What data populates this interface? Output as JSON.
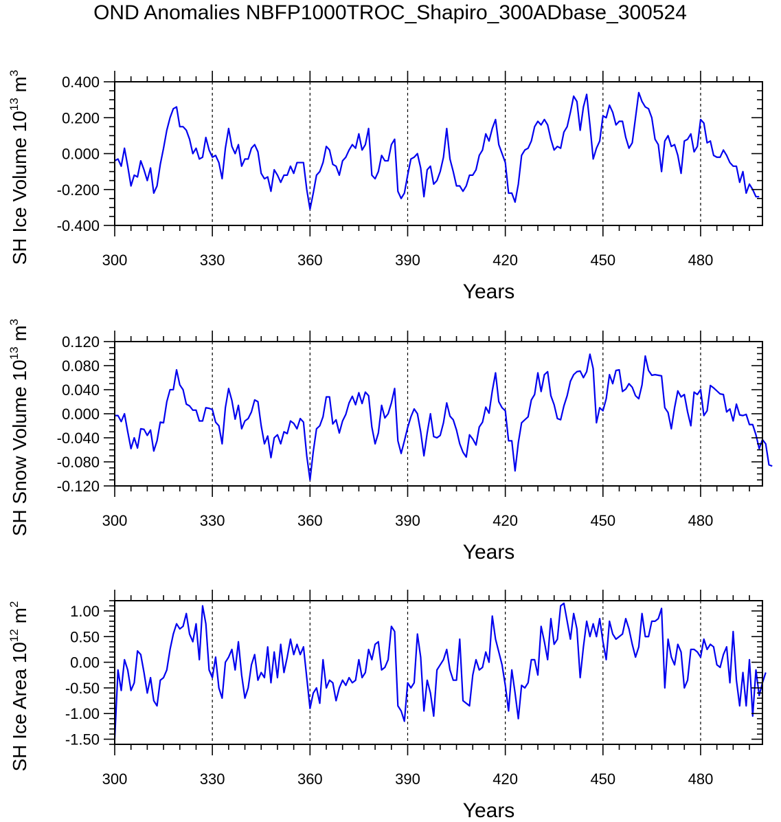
{
  "title": "OND Anomalies NBFP1000TROC_Shapiro_300ADbase_300524",
  "chart_data": [
    {
      "type": "line",
      "xlabel": "Years",
      "ylabel": {
        "text": "SH Ice Volume 10",
        "sup": "13",
        "unit": " m",
        "unit_sup": "3"
      },
      "xlim": [
        300,
        499
      ],
      "ylim": [
        -0.4,
        0.4
      ],
      "xticks": [
        "300",
        "330",
        "360",
        "390",
        "420",
        "450",
        "480"
      ],
      "xtick_values": [
        300,
        330,
        360,
        390,
        420,
        450,
        480
      ],
      "yticks": [
        "-0.400",
        "-0.200",
        "0.000",
        "0.200",
        "0.400"
      ],
      "ytick_values": [
        -0.4,
        -0.2,
        0.0,
        0.2,
        0.4
      ],
      "minor_ystep": 0.05,
      "vlines": [
        330,
        360,
        390,
        420,
        450,
        480
      ],
      "color": "#0000ee",
      "series": [
        {
          "x_start": 300,
          "values": [
            -0.04,
            -0.03,
            -0.07,
            0.03,
            -0.07,
            -0.18,
            -0.12,
            -0.13,
            -0.04,
            -0.09,
            -0.15,
            -0.08,
            -0.22,
            -0.18,
            -0.06,
            0.03,
            0.13,
            0.2,
            0.25,
            0.26,
            0.15,
            0.15,
            0.13,
            0.08,
            0.0,
            0.03,
            -0.03,
            -0.02,
            0.09,
            0.02,
            -0.02,
            -0.01,
            -0.05,
            -0.14,
            0.03,
            0.14,
            0.04,
            0.0,
            0.05,
            -0.07,
            -0.03,
            -0.03,
            0.03,
            0.05,
            0.01,
            -0.11,
            -0.14,
            -0.13,
            -0.21,
            -0.09,
            -0.12,
            -0.16,
            -0.12,
            -0.12,
            -0.07,
            -0.11,
            -0.05,
            -0.05,
            -0.05,
            -0.2,
            -0.31,
            -0.22,
            -0.12,
            -0.1,
            -0.05,
            0.04,
            0.02,
            -0.06,
            -0.07,
            -0.12,
            -0.04,
            -0.02,
            0.02,
            0.05,
            0.03,
            0.11,
            0.02,
            0.05,
            0.14,
            -0.12,
            -0.14,
            -0.1,
            -0.01,
            -0.04,
            -0.04,
            0.05,
            0.08,
            -0.21,
            -0.25,
            -0.22,
            -0.12,
            -0.03,
            -0.02,
            0.0,
            -0.08,
            -0.24,
            -0.09,
            -0.07,
            -0.17,
            -0.15,
            -0.1,
            -0.02,
            0.14,
            -0.03,
            -0.1,
            -0.18,
            -0.18,
            -0.21,
            -0.18,
            -0.12,
            -0.12,
            -0.09,
            -0.01,
            0.02,
            0.11,
            0.07,
            0.14,
            0.19,
            0.05,
            0.0,
            -0.05,
            -0.22,
            -0.22,
            -0.27,
            -0.17,
            -0.01,
            0.02,
            0.03,
            0.07,
            0.15,
            0.18,
            0.16,
            0.19,
            0.16,
            0.08,
            0.02,
            0.04,
            0.03,
            0.12,
            0.15,
            0.23,
            0.32,
            0.29,
            0.13,
            0.26,
            0.33,
            0.16,
            -0.03,
            0.03,
            0.07,
            0.21,
            0.2,
            0.27,
            0.23,
            0.16,
            0.18,
            0.18,
            0.09,
            0.03,
            0.06,
            0.2,
            0.34,
            0.29,
            0.26,
            0.25,
            0.2,
            0.08,
            0.05,
            -0.1,
            0.07,
            0.1,
            0.04,
            0.05,
            -0.01,
            -0.11,
            0.07,
            0.08,
            0.11,
            0.01,
            0.04,
            0.19,
            0.17,
            0.06,
            0.07,
            -0.01,
            -0.02,
            -0.02,
            0.02,
            -0.01,
            -0.05,
            -0.07,
            -0.07,
            -0.16,
            -0.1,
            -0.22,
            -0.17,
            -0.2,
            -0.24,
            -0.24
          ]
        }
      ]
    },
    {
      "type": "line",
      "xlabel": "Years",
      "ylabel": {
        "text": "SH Snow Volume 10",
        "sup": "13",
        "unit": " m",
        "unit_sup": "3"
      },
      "xlim": [
        300,
        499
      ],
      "ylim": [
        -0.12,
        0.12
      ],
      "xticks": [
        "300",
        "330",
        "360",
        "390",
        "420",
        "450",
        "480"
      ],
      "xtick_values": [
        300,
        330,
        360,
        390,
        420,
        450,
        480
      ],
      "yticks": [
        "-0.120",
        "-0.080",
        "-0.040",
        "0.000",
        "0.040",
        "0.080",
        "0.120"
      ],
      "ytick_values": [
        -0.12,
        -0.08,
        -0.04,
        0.0,
        0.04,
        0.08,
        0.12
      ],
      "minor_ystep": 0.01,
      "vlines": [
        330,
        360,
        390,
        420,
        450,
        480
      ],
      "color": "#0000ee",
      "series": [
        {
          "x_start": 300,
          "values": [
            -0.003,
            -0.003,
            -0.013,
            0.0,
            -0.03,
            -0.058,
            -0.04,
            -0.057,
            -0.025,
            -0.026,
            -0.036,
            -0.027,
            -0.062,
            -0.045,
            -0.014,
            -0.015,
            0.02,
            0.04,
            0.04,
            0.073,
            0.048,
            0.04,
            0.016,
            0.013,
            0.006,
            0.006,
            -0.012,
            -0.012,
            0.01,
            0.009,
            0.007,
            -0.014,
            -0.02,
            -0.05,
            0.01,
            0.042,
            0.022,
            -0.009,
            0.014,
            -0.025,
            -0.012,
            -0.008,
            0.003,
            0.023,
            0.02,
            -0.02,
            -0.05,
            -0.037,
            -0.073,
            -0.04,
            -0.035,
            -0.05,
            -0.03,
            -0.033,
            -0.012,
            -0.016,
            -0.025,
            -0.008,
            -0.014,
            -0.07,
            -0.11,
            -0.063,
            -0.025,
            -0.02,
            -0.005,
            0.028,
            0.028,
            -0.017,
            -0.01,
            -0.032,
            -0.012,
            -0.001,
            0.018,
            0.029,
            0.015,
            0.035,
            0.017,
            0.036,
            0.03,
            -0.022,
            -0.05,
            -0.032,
            0.014,
            -0.007,
            0.0,
            0.018,
            0.042,
            -0.045,
            -0.066,
            -0.045,
            -0.023,
            -0.005,
            0.008,
            0.0,
            -0.03,
            -0.07,
            -0.032,
            0.0,
            -0.038,
            -0.04,
            -0.036,
            -0.015,
            0.018,
            -0.004,
            -0.01,
            -0.027,
            -0.05,
            -0.064,
            -0.072,
            -0.035,
            -0.042,
            -0.052,
            -0.022,
            -0.014,
            0.011,
            0.001,
            0.038,
            0.068,
            0.02,
            0.01,
            0.005,
            -0.045,
            -0.045,
            -0.095,
            -0.048,
            -0.015,
            -0.01,
            -0.005,
            0.023,
            0.032,
            0.068,
            0.037,
            0.065,
            0.07,
            0.03,
            0.015,
            -0.008,
            -0.01,
            0.013,
            0.03,
            0.054,
            0.065,
            0.07,
            0.071,
            0.06,
            0.07,
            0.099,
            0.075,
            -0.015,
            0.01,
            0.005,
            0.025,
            0.065,
            0.05,
            0.072,
            0.073,
            0.037,
            0.041,
            0.05,
            0.044,
            0.03,
            0.025,
            0.048,
            0.096,
            0.072,
            0.064,
            0.065,
            0.064,
            0.063,
            0.01,
            0.002,
            -0.025,
            0.01,
            0.038,
            0.028,
            0.032,
            0.003,
            -0.02,
            0.036,
            0.032,
            0.04,
            -0.003,
            0.005,
            0.047,
            0.043,
            0.038,
            0.033,
            0.032,
            0.003,
            0.008,
            -0.012,
            0.016,
            -0.002,
            -0.003,
            -0.001,
            -0.018,
            -0.018,
            -0.035,
            -0.058,
            -0.043,
            -0.05,
            -0.085,
            -0.087
          ]
        }
      ]
    },
    {
      "type": "line",
      "xlabel": "Years",
      "ylabel": {
        "text": "SH Ice Area 10",
        "sup": "12",
        "unit": " m",
        "unit_sup": "2"
      },
      "xlim": [
        300,
        499
      ],
      "ylim": [
        -1.6,
        1.2
      ],
      "xticks": [
        "300",
        "330",
        "360",
        "390",
        "420",
        "450",
        "480"
      ],
      "xtick_values": [
        300,
        330,
        360,
        390,
        420,
        450,
        480
      ],
      "yticks": [
        "-1.50",
        "-1.00",
        "-0.50",
        "0.00",
        "0.50",
        "1.00"
      ],
      "ytick_values": [
        -1.5,
        -1.0,
        -0.5,
        0.0,
        0.5,
        1.0
      ],
      "minor_ystep": 0.1,
      "vlines": [
        330,
        360,
        390,
        420,
        450,
        480
      ],
      "color": "#0000ee",
      "series": [
        {
          "x_start": 300,
          "values": [
            -1.5,
            -0.15,
            -0.55,
            0.05,
            -0.15,
            -0.55,
            -0.4,
            0.22,
            0.15,
            -0.2,
            -0.6,
            -0.3,
            -0.75,
            -0.85,
            -0.35,
            -0.3,
            -0.15,
            0.25,
            0.55,
            0.75,
            0.65,
            0.7,
            0.95,
            0.55,
            0.4,
            0.75,
            0.05,
            1.1,
            0.75,
            -0.15,
            -0.3,
            0.1,
            -0.5,
            -0.7,
            0.0,
            0.1,
            0.25,
            -0.15,
            0.4,
            -0.25,
            -0.7,
            -0.5,
            -0.05,
            0.15,
            -0.35,
            -0.2,
            -0.3,
            0.3,
            -0.4,
            0.2,
            -0.3,
            0.35,
            -0.2,
            0.1,
            0.45,
            0.15,
            0.35,
            0.15,
            0.3,
            -0.3,
            -0.9,
            -0.6,
            -0.5,
            -0.8,
            0.05,
            -0.5,
            -0.35,
            -0.4,
            -0.75,
            -0.5,
            -0.35,
            -0.45,
            -0.3,
            -0.4,
            -0.35,
            0.05,
            -0.3,
            -0.2,
            0.25,
            0.05,
            0.35,
            0.4,
            -0.15,
            -0.1,
            0.05,
            0.7,
            0.6,
            -0.85,
            -0.95,
            -1.15,
            -0.4,
            -0.5,
            -0.4,
            0.55,
            0.1,
            -0.95,
            -0.35,
            -0.6,
            -1.05,
            -0.15,
            -0.05,
            0.05,
            0.25,
            -0.15,
            -0.35,
            -0.35,
            0.45,
            -0.75,
            -0.8,
            -0.85,
            -0.25,
            0.05,
            -0.15,
            -0.1,
            0.2,
            0.0,
            0.9,
            0.45,
            0.2,
            -0.05,
            -0.45,
            -0.95,
            -0.15,
            -0.6,
            -1.1,
            -0.45,
            -0.5,
            -0.4,
            0.05,
            0.05,
            -0.25,
            0.7,
            0.4,
            0.05,
            0.85,
            0.35,
            0.45,
            1.1,
            1.15,
            0.8,
            0.45,
            0.95,
            0.65,
            -0.3,
            0.3,
            0.8,
            0.5,
            0.75,
            0.5,
            0.85,
            0.4,
            0.05,
            0.8,
            0.55,
            0.45,
            0.5,
            0.55,
            0.85,
            0.65,
            0.35,
            0.1,
            0.3,
            0.95,
            0.5,
            0.5,
            0.8,
            0.8,
            0.85,
            1.05,
            -0.5,
            0.45,
            0.1,
            -0.05,
            0.35,
            0.2,
            -0.5,
            -0.35,
            0.25,
            0.25,
            0.2,
            0.1,
            0.45,
            0.25,
            0.35,
            0.3,
            -0.05,
            -0.1,
            0.15,
            0.3,
            -0.4,
            0.6,
            -0.35,
            -0.85,
            -0.2,
            -0.85,
            0.05,
            -1.05,
            -0.15,
            -0.65,
            -0.4,
            -0.2
          ]
        }
      ]
    }
  ]
}
